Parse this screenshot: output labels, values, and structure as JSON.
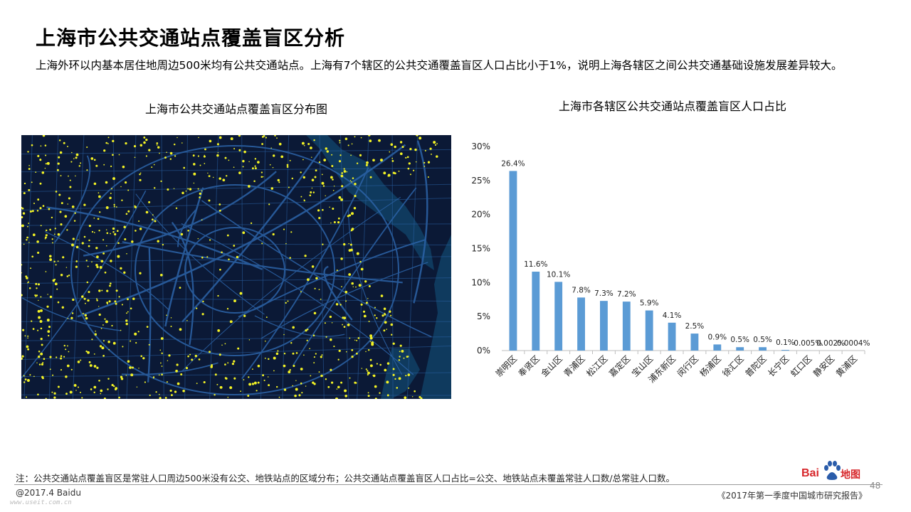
{
  "page": {
    "title": "上海市公共交通站点覆盖盲区分析",
    "subtitle": "上海外环以内基本居住地周边500米均有公共交通站点。上海有7个辖区的公共交通覆盖盲区人口占比小于1%，说明上海各辖区之间公共交通基础设施发展差异较大。"
  },
  "map": {
    "title": "上海市公共交通站点覆盖盲区分布图",
    "colors": {
      "land": "#0b1936",
      "water": "#0f3a5e",
      "road": "#2c64a9",
      "highlight": "#f3f325"
    }
  },
  "chart_data": {
    "type": "bar",
    "title": "上海市各辖区公共交通站点覆盖盲区人口占比",
    "categories": [
      "崇明区",
      "奉贤区",
      "金山区",
      "青浦区",
      "松江区",
      "嘉定区",
      "宝山区",
      "浦东新区",
      "闵行区",
      "杨浦区",
      "徐汇区",
      "普陀区",
      "长宁区",
      "虹口区",
      "静安区",
      "黄浦区"
    ],
    "values": [
      26.4,
      11.6,
      10.1,
      7.8,
      7.3,
      7.2,
      5.9,
      4.1,
      2.5,
      0.9,
      0.5,
      0.5,
      0.1,
      0.005,
      0.002,
      0.0004
    ],
    "value_labels": [
      "26.4%",
      "11.6%",
      "10.1%",
      "7.8%",
      "7.3%",
      "7.2%",
      "5.9%",
      "4.1%",
      "2.5%",
      "0.9%",
      "0.5%",
      "0.5%",
      "0.1%",
      "0.005%",
      "0.002%",
      "0.0004%"
    ],
    "ylim": [
      0,
      30
    ],
    "yticks": [
      0,
      5,
      10,
      15,
      20,
      25,
      30
    ],
    "ytick_labels": [
      "0%",
      "5%",
      "10%",
      "15%",
      "20%",
      "25%",
      "30%"
    ],
    "grid": false,
    "bar_color": "#5b9bd5"
  },
  "footer": {
    "note": "注：公共交通站点覆盖盲区是常驻人口周边500米没有公交、地铁站点的区域分布；公共交通站点覆盖盲区人口占比=公交、地铁站点未覆盖常驻人口数/总常驻人口数。",
    "copyright": "@2017.4 Baidu",
    "watermark": "www.useit.com.cn",
    "report": "《2017年第一季度中国城市研究报告》",
    "page_number": "48",
    "logo_text_bai": "Bai",
    "logo_text_map": "地图"
  }
}
